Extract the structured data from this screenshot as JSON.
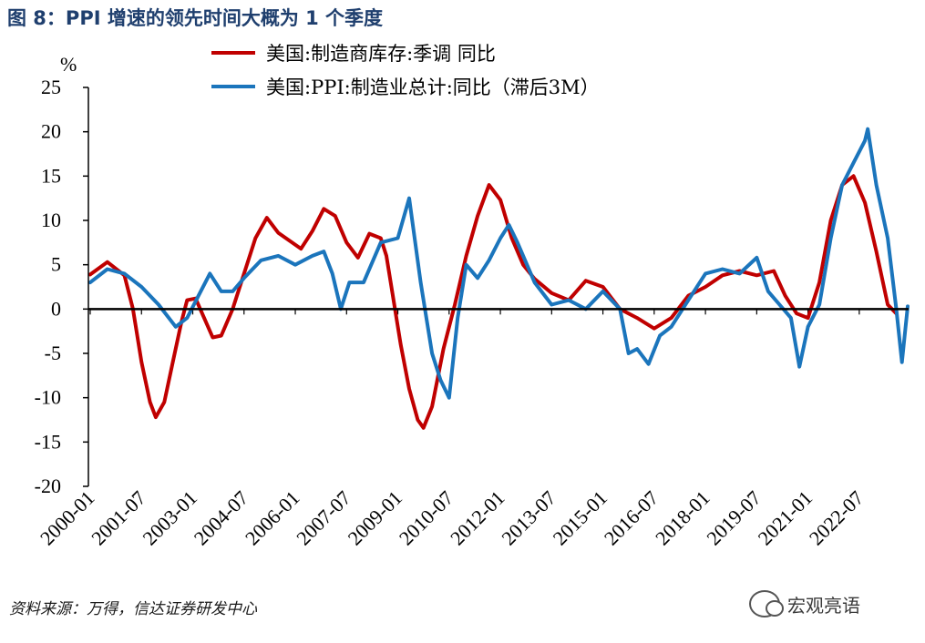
{
  "figure": {
    "title": "图 8：PPI 增速的领先时间大概为 1 个季度",
    "source": "资料来源：万得，信达证券研发中心",
    "watermark": "宏观亮语",
    "watermark_icon": "wechat-icon"
  },
  "chart_data": {
    "type": "line",
    "title": "",
    "xlabel": "",
    "ylabel": "%",
    "ylim": [
      -20,
      25
    ],
    "yticks": [
      -20,
      -15,
      -10,
      -5,
      0,
      5,
      10,
      15,
      20,
      25
    ],
    "xlim": [
      "2000-01",
      "2023-12"
    ],
    "xticks": [
      "2000-01",
      "2001-07",
      "2003-01",
      "2004-07",
      "2006-01",
      "2007-07",
      "2009-01",
      "2010-07",
      "2012-01",
      "2013-07",
      "2015-01",
      "2016-07",
      "2018-01",
      "2019-07",
      "2021-01",
      "2022-07"
    ],
    "grid": false,
    "legend_position": "top",
    "series": [
      {
        "name": "美国:制造商库存:季调 同比",
        "color": "#c00000",
        "points": [
          [
            "2000-01",
            3.9
          ],
          [
            "2000-07",
            5.3
          ],
          [
            "2001-01",
            3.8
          ],
          [
            "2001-04",
            0.0
          ],
          [
            "2001-07",
            -6.0
          ],
          [
            "2001-10",
            -10.5
          ],
          [
            "2001-12",
            -12.2
          ],
          [
            "2002-03",
            -10.5
          ],
          [
            "2002-06",
            -6.0
          ],
          [
            "2002-09",
            -1.5
          ],
          [
            "2002-11",
            1.0
          ],
          [
            "2003-02",
            1.2
          ],
          [
            "2003-05",
            -1.0
          ],
          [
            "2003-08",
            -3.2
          ],
          [
            "2003-11",
            -3.0
          ],
          [
            "2004-03",
            0.0
          ],
          [
            "2004-07",
            4.0
          ],
          [
            "2004-11",
            8.0
          ],
          [
            "2005-03",
            10.3
          ],
          [
            "2005-07",
            8.6
          ],
          [
            "2005-11",
            7.7
          ],
          [
            "2006-03",
            6.8
          ],
          [
            "2006-07",
            8.8
          ],
          [
            "2006-11",
            11.3
          ],
          [
            "2007-03",
            10.5
          ],
          [
            "2007-07",
            7.5
          ],
          [
            "2007-11",
            5.8
          ],
          [
            "2008-03",
            8.5
          ],
          [
            "2008-07",
            8.0
          ],
          [
            "2008-09",
            6.0
          ],
          [
            "2008-11",
            2.0
          ],
          [
            "2009-02",
            -4.0
          ],
          [
            "2009-05",
            -9.0
          ],
          [
            "2009-08",
            -12.5
          ],
          [
            "2009-10",
            -13.4
          ],
          [
            "2010-01",
            -11.0
          ],
          [
            "2010-05",
            -4.5
          ],
          [
            "2010-09",
            0.5
          ],
          [
            "2011-01",
            6.0
          ],
          [
            "2011-05",
            10.5
          ],
          [
            "2011-09",
            14.0
          ],
          [
            "2012-01",
            12.3
          ],
          [
            "2012-05",
            8.0
          ],
          [
            "2012-09",
            5.0
          ],
          [
            "2013-01",
            3.4
          ],
          [
            "2013-07",
            1.8
          ],
          [
            "2014-01",
            1.0
          ],
          [
            "2014-07",
            3.2
          ],
          [
            "2015-01",
            2.5
          ],
          [
            "2015-07",
            0.0
          ],
          [
            "2016-01",
            -1.0
          ],
          [
            "2016-07",
            -2.2
          ],
          [
            "2017-01",
            -1.0
          ],
          [
            "2017-07",
            1.5
          ],
          [
            "2018-01",
            2.5
          ],
          [
            "2018-07",
            3.8
          ],
          [
            "2019-01",
            4.3
          ],
          [
            "2019-07",
            3.8
          ],
          [
            "2020-01",
            4.3
          ],
          [
            "2020-05",
            1.5
          ],
          [
            "2020-09",
            -0.5
          ],
          [
            "2021-01",
            -1.0
          ],
          [
            "2021-05",
            3.0
          ],
          [
            "2021-09",
            10.0
          ],
          [
            "2022-01",
            14.0
          ],
          [
            "2022-05",
            15.0
          ],
          [
            "2022-09",
            12.0
          ],
          [
            "2023-01",
            6.5
          ],
          [
            "2023-05",
            0.5
          ],
          [
            "2023-08",
            -0.5
          ]
        ]
      },
      {
        "name": "美国:PPI:制造业总计:同比（滞后3M）",
        "color": "#1b75bc",
        "points": [
          [
            "2000-01",
            3.0
          ],
          [
            "2000-07",
            4.5
          ],
          [
            "2001-01",
            4.0
          ],
          [
            "2001-07",
            2.5
          ],
          [
            "2002-01",
            0.5
          ],
          [
            "2002-07",
            -2.0
          ],
          [
            "2002-11",
            -1.0
          ],
          [
            "2003-03",
            1.5
          ],
          [
            "2003-07",
            4.0
          ],
          [
            "2003-11",
            2.0
          ],
          [
            "2004-03",
            2.0
          ],
          [
            "2004-07",
            3.5
          ],
          [
            "2005-01",
            5.5
          ],
          [
            "2005-07",
            6.0
          ],
          [
            "2006-01",
            5.0
          ],
          [
            "2006-07",
            6.0
          ],
          [
            "2006-11",
            6.5
          ],
          [
            "2007-02",
            4.0
          ],
          [
            "2007-05",
            0.0
          ],
          [
            "2007-08",
            3.0
          ],
          [
            "2008-01",
            3.0
          ],
          [
            "2008-07",
            7.5
          ],
          [
            "2009-01",
            8.0
          ],
          [
            "2009-05",
            12.5
          ],
          [
            "2009-09",
            3.0
          ],
          [
            "2010-01",
            -5.0
          ],
          [
            "2010-04",
            -8.0
          ],
          [
            "2010-07",
            -10.0
          ],
          [
            "2010-10",
            -1.0
          ],
          [
            "2011-01",
            5.0
          ],
          [
            "2011-05",
            3.5
          ],
          [
            "2011-09",
            5.5
          ],
          [
            "2012-01",
            8.0
          ],
          [
            "2012-04",
            9.5
          ],
          [
            "2012-07",
            7.5
          ],
          [
            "2013-01",
            3.0
          ],
          [
            "2013-07",
            0.5
          ],
          [
            "2014-01",
            1.0
          ],
          [
            "2014-07",
            0.0
          ],
          [
            "2015-01",
            2.0
          ],
          [
            "2015-07",
            0.0
          ],
          [
            "2015-10",
            -5.0
          ],
          [
            "2016-01",
            -4.5
          ],
          [
            "2016-05",
            -6.2
          ],
          [
            "2016-09",
            -3.0
          ],
          [
            "2017-01",
            -2.0
          ],
          [
            "2017-07",
            1.0
          ],
          [
            "2018-01",
            4.0
          ],
          [
            "2018-07",
            4.5
          ],
          [
            "2019-01",
            4.0
          ],
          [
            "2019-07",
            5.8
          ],
          [
            "2019-11",
            2.0
          ],
          [
            "2020-03",
            0.5
          ],
          [
            "2020-07",
            -1.0
          ],
          [
            "2020-10",
            -6.5
          ],
          [
            "2021-01",
            -2.0
          ],
          [
            "2021-05",
            0.5
          ],
          [
            "2021-09",
            8.0
          ],
          [
            "2022-01",
            14.0
          ],
          [
            "2022-05",
            16.5
          ],
          [
            "2022-09",
            19.0
          ],
          [
            "2022-10",
            20.3
          ],
          [
            "2023-01",
            14.0
          ],
          [
            "2023-05",
            8.0
          ],
          [
            "2023-08",
            0.0
          ],
          [
            "2023-10",
            -6.0
          ],
          [
            "2023-12",
            0.3
          ]
        ]
      }
    ]
  }
}
